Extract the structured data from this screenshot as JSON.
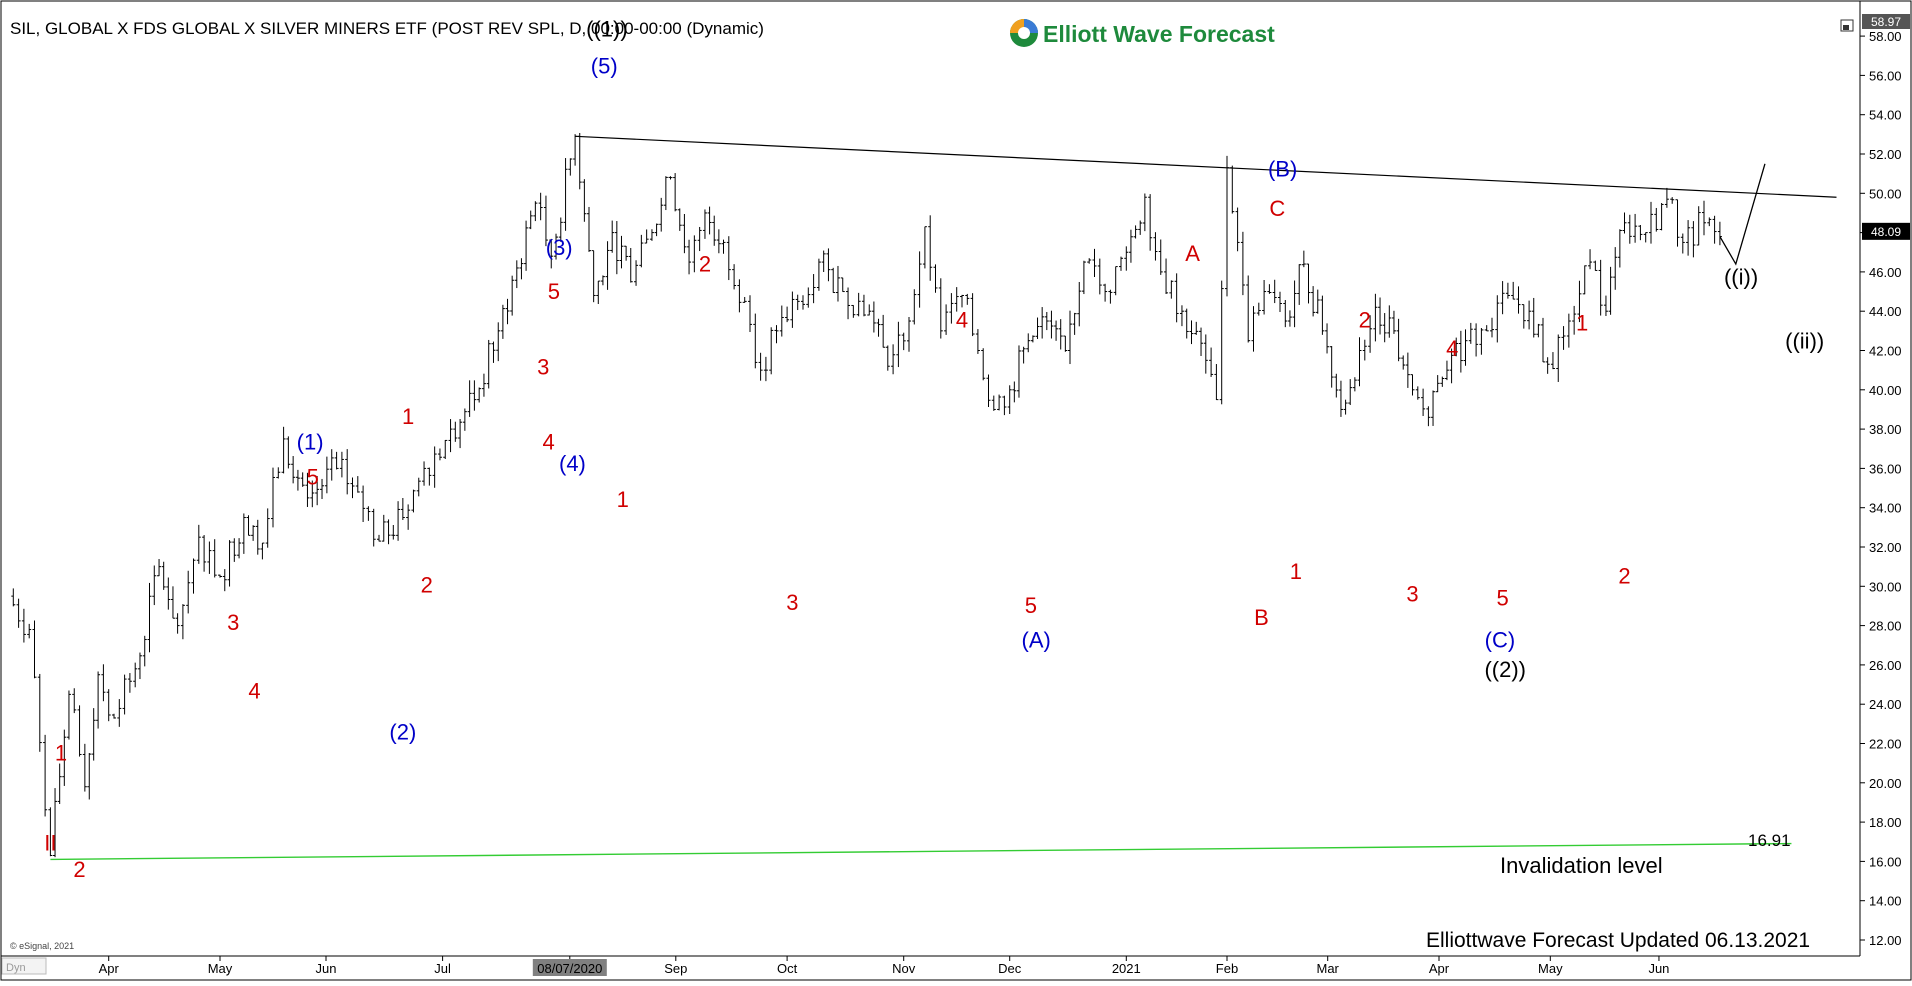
{
  "header": {
    "title": "SIL, GLOBAL X FDS GLOBAL X SILVER MINERS ETF (POST REV SPL, D, 00:00-00:00 (Dynamic)",
    "brand": "Elliott Wave Forecast",
    "footer": "Elliottwave Forecast Updated 06.13.2021",
    "copyright": "© eSignal, 2021",
    "corner_label": "Dyn"
  },
  "colors": {
    "wave_red": "#d00000",
    "wave_blue": "#0000c8",
    "wave_black": "#000000",
    "invalidation_line": "#33cc33",
    "trendline": "#000000",
    "bars": "#000000",
    "brand_green": "#1e8a3c"
  },
  "chart_data": {
    "type": "ohlc",
    "ylim": [
      12,
      59
    ],
    "y_ticks": [
      "12.00",
      "14.00",
      "16.00",
      "18.00",
      "20.00",
      "22.00",
      "24.00",
      "26.00",
      "28.00",
      "30.00",
      "32.00",
      "34.00",
      "36.00",
      "38.00",
      "40.00",
      "42.00",
      "44.00",
      "46.00",
      "48.00",
      "50.00",
      "52.00",
      "54.00",
      "56.00",
      "58.00"
    ],
    "y_top_label": "58.97",
    "last_price": "48.09",
    "x_ticks": [
      {
        "label": "Apr",
        "t": 3.8
      },
      {
        "label": "May",
        "t": 8.0
      },
      {
        "label": "Jun",
        "t": 12.0
      },
      {
        "label": "Jul",
        "t": 16.4
      },
      {
        "label": "08/07/2020",
        "t": 21.2,
        "highlight": true
      },
      {
        "label": "Sep",
        "t": 25.2
      },
      {
        "label": "Oct",
        "t": 29.4
      },
      {
        "label": "Nov",
        "t": 33.8
      },
      {
        "label": "Dec",
        "t": 37.8
      },
      {
        "label": "2021",
        "t": 42.2
      },
      {
        "label": "Feb",
        "t": 46.0
      },
      {
        "label": "Mar",
        "t": 49.8
      },
      {
        "label": "Apr",
        "t": 54.0
      },
      {
        "label": "May",
        "t": 58.2
      },
      {
        "label": "Jun",
        "t": 62.3
      }
    ],
    "price_path": [
      [
        0.0,
        29.5
      ],
      [
        0.8,
        27.8
      ],
      [
        1.6,
        16.3
      ],
      [
        2.3,
        24.5
      ],
      [
        2.9,
        19.8
      ],
      [
        3.4,
        25.5
      ],
      [
        4.0,
        23.3
      ],
      [
        4.8,
        25.8
      ],
      [
        5.7,
        31.0
      ],
      [
        6.4,
        28.0
      ],
      [
        7.2,
        32.5
      ],
      [
        8.0,
        30.5
      ],
      [
        8.9,
        33.5
      ],
      [
        9.6,
        32.2
      ],
      [
        10.4,
        37.5
      ],
      [
        11.3,
        34.5
      ],
      [
        12.4,
        36.0
      ],
      [
        13.2,
        34.8
      ],
      [
        14.0,
        32.3
      ],
      [
        14.9,
        33.5
      ],
      [
        15.7,
        36.0
      ],
      [
        16.7,
        38.0
      ],
      [
        17.6,
        39.5
      ],
      [
        18.5,
        43.0
      ],
      [
        19.2,
        46.2
      ],
      [
        19.9,
        49.5
      ],
      [
        20.5,
        46.8
      ],
      [
        21.4,
        52.9
      ],
      [
        22.1,
        44.8
      ],
      [
        22.8,
        48.0
      ],
      [
        23.5,
        45.5
      ],
      [
        24.3,
        48.0
      ],
      [
        25.0,
        50.8
      ],
      [
        25.7,
        46.5
      ],
      [
        26.3,
        49.0
      ],
      [
        27.0,
        47.5
      ],
      [
        27.8,
        44.5
      ],
      [
        28.4,
        41.0
      ],
      [
        29.0,
        43.0
      ],
      [
        29.8,
        44.5
      ],
      [
        30.6,
        46.5
      ],
      [
        31.5,
        45.0
      ],
      [
        32.5,
        44.0
      ],
      [
        33.2,
        41.2
      ],
      [
        34.0,
        43.5
      ],
      [
        34.6,
        48.3
      ],
      [
        35.2,
        43.0
      ],
      [
        36.0,
        44.8
      ],
      [
        36.6,
        42.0
      ],
      [
        37.2,
        39.0
      ],
      [
        37.8,
        40.0
      ],
      [
        38.5,
        42.5
      ],
      [
        39.2,
        43.5
      ],
      [
        39.9,
        42.0
      ],
      [
        40.6,
        46.5
      ],
      [
        41.4,
        45.0
      ],
      [
        42.2,
        47.0
      ],
      [
        42.9,
        49.8
      ],
      [
        43.5,
        46.0
      ],
      [
        44.3,
        44.0
      ],
      [
        45.2,
        41.5
      ],
      [
        45.6,
        39.5
      ],
      [
        46.0,
        51.3
      ],
      [
        46.4,
        47.5
      ],
      [
        46.8,
        42.5
      ],
      [
        47.4,
        45.0
      ],
      [
        48.2,
        43.5
      ],
      [
        48.9,
        46.4
      ],
      [
        49.6,
        43.0
      ],
      [
        50.3,
        39.0
      ],
      [
        51.0,
        42.0
      ],
      [
        51.6,
        44.2
      ],
      [
        52.3,
        43.0
      ],
      [
        53.0,
        40.0
      ],
      [
        53.6,
        38.6
      ],
      [
        54.3,
        41.0
      ],
      [
        55.0,
        42.5
      ],
      [
        55.8,
        43.0
      ],
      [
        56.6,
        44.8
      ],
      [
        57.4,
        44.0
      ],
      [
        58.1,
        41.3
      ],
      [
        58.9,
        43.5
      ],
      [
        59.7,
        46.5
      ],
      [
        60.3,
        44.0
      ],
      [
        61.0,
        48.5
      ],
      [
        61.8,
        48.0
      ],
      [
        62.6,
        49.7
      ],
      [
        63.2,
        47.5
      ],
      [
        64.0,
        48.5
      ],
      [
        64.6,
        47.8
      ]
    ],
    "projection": [
      [
        64.6,
        47.8
      ],
      [
        65.2,
        46.4
      ],
      [
        66.3,
        51.5
      ]
    ],
    "trendline": [
      [
        21.4,
        52.9
      ],
      [
        69.0,
        49.8
      ]
    ],
    "invalidation": {
      "value_label": "16.91",
      "text": "Invalidation level",
      "y_start": 16.1,
      "y_end": 16.91,
      "t_start": 1.6,
      "t_end": 67.3
    },
    "wave_labels": [
      {
        "t": 1.6,
        "y": 13.3,
        "text": "II",
        "color": "red",
        "size": 30
      },
      {
        "t": 2.0,
        "y": 22.5,
        "text": "1",
        "color": "red"
      },
      {
        "t": 2.7,
        "y": 10.6,
        "text": "2",
        "color": "red"
      },
      {
        "t": 11.4,
        "y": 54.2,
        "text": "(1)",
        "color": "blue"
      },
      {
        "t": 11.5,
        "y": 50.6,
        "text": "5",
        "color": "red"
      },
      {
        "t": 8.5,
        "y": 35.8,
        "text": "3",
        "color": "red"
      },
      {
        "t": 9.3,
        "y": 28.8,
        "text": "4",
        "color": "red"
      },
      {
        "t": 15.1,
        "y": 56.8,
        "text": "1",
        "color": "red"
      },
      {
        "t": 15.8,
        "y": 39.6,
        "text": "2",
        "color": "red"
      },
      {
        "t": 14.9,
        "y": 24.6,
        "text": "(2)",
        "color": "blue"
      },
      {
        "t": 20.2,
        "y": 61.8,
        "text": "3",
        "color": "red"
      },
      {
        "t": 20.4,
        "y": 54.2,
        "text": "4",
        "color": "red"
      },
      {
        "t": 20.6,
        "y": 69.5,
        "text": "5",
        "color": "red"
      },
      {
        "t": 20.8,
        "y": 74.0,
        "text": "(3)",
        "color": "blue"
      },
      {
        "t": 21.3,
        "y": 52.0,
        "text": "(4)",
        "color": "blue"
      },
      {
        "t": 22.5,
        "y": 92.5,
        "text": "(5)",
        "color": "blue"
      },
      {
        "t": 22.6,
        "y": 96.3,
        "text": "((1))",
        "color": "black"
      },
      {
        "t": 23.2,
        "y": 48.3,
        "text": "1",
        "color": "red"
      },
      {
        "t": 26.3,
        "y": 72.3,
        "text": "2",
        "color": "red"
      },
      {
        "t": 29.6,
        "y": 37.8,
        "text": "3",
        "color": "red"
      },
      {
        "t": 36.0,
        "y": 66.6,
        "text": "4",
        "color": "red"
      },
      {
        "t": 38.6,
        "y": 37.5,
        "text": "5",
        "color": "red"
      },
      {
        "t": 38.8,
        "y": 34.0,
        "text": "(A)",
        "color": "blue"
      },
      {
        "t": 44.7,
        "y": 73.4,
        "text": "A",
        "color": "red"
      },
      {
        "t": 47.3,
        "y": 36.3,
        "text": "B",
        "color": "red"
      },
      {
        "t": 47.9,
        "y": 78.0,
        "text": "C",
        "color": "red"
      },
      {
        "t": 48.1,
        "y": 82.0,
        "text": "(B)",
        "color": "blue"
      },
      {
        "t": 48.6,
        "y": 41.0,
        "text": "1",
        "color": "red"
      },
      {
        "t": 51.2,
        "y": 66.6,
        "text": "2",
        "color": "red"
      },
      {
        "t": 53.0,
        "y": 38.7,
        "text": "3",
        "color": "red"
      },
      {
        "t": 54.5,
        "y": 63.7,
        "text": "4",
        "color": "red"
      },
      {
        "t": 56.4,
        "y": 38.3,
        "text": "5",
        "color": "red"
      },
      {
        "t": 56.3,
        "y": 34.0,
        "text": "(C)",
        "color": "blue"
      },
      {
        "t": 56.5,
        "y": 31.0,
        "text": "((2))",
        "color": "black"
      },
      {
        "t": 59.4,
        "y": 66.3,
        "text": "1",
        "color": "red"
      },
      {
        "t": 61.0,
        "y": 40.5,
        "text": "2",
        "color": "red"
      },
      {
        "t": 65.4,
        "y": 71.0,
        "text": "((i))",
        "color": "black"
      },
      {
        "t": 67.8,
        "y": 64.5,
        "text": "((ii))",
        "color": "black"
      }
    ]
  }
}
